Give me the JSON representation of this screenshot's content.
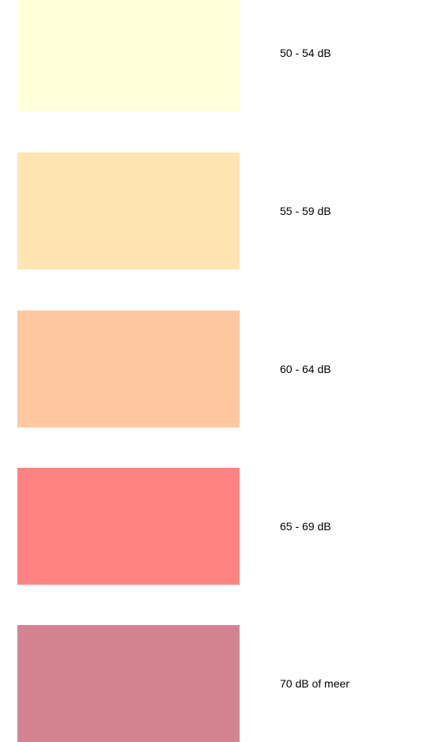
{
  "legend": {
    "items": [
      {
        "label": "50 - 54 dB",
        "color": "#ffffd9"
      },
      {
        "label": "55 - 59 dB",
        "color": "#fde5b1"
      },
      {
        "label": "60 - 64 dB",
        "color": "#ffc89f"
      },
      {
        "label": "65 - 69 dB",
        "color": "#ff8481"
      },
      {
        "label": "70 dB of meer",
        "color": "#d58290"
      }
    ]
  }
}
